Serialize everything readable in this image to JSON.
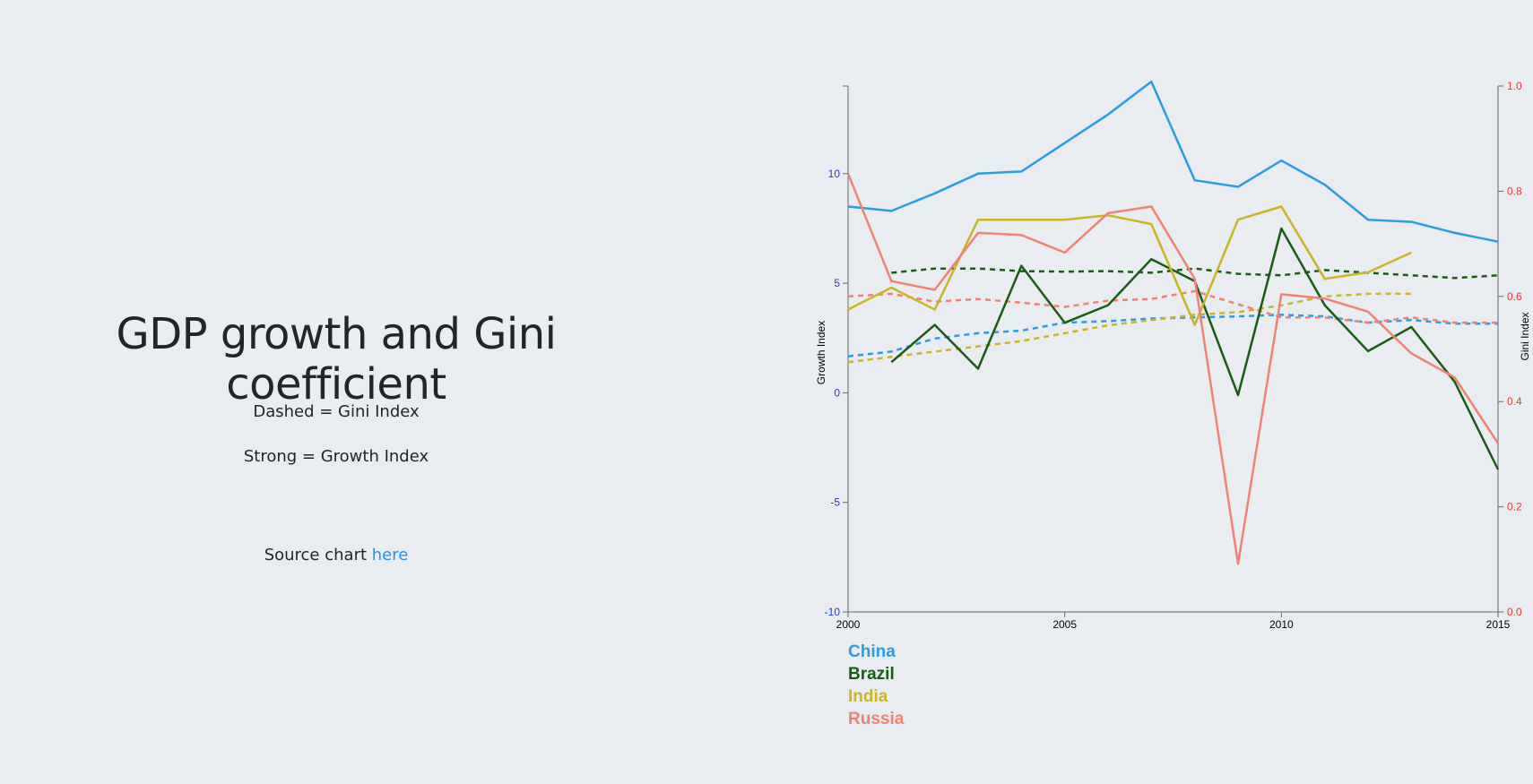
{
  "page": {
    "title": "GDP growth and Gini coefficient",
    "note_dashed": "Dashed = Gini Index",
    "note_strong": "Strong = Growth Index",
    "source_prefix": "Source chart ",
    "source_link": "here"
  },
  "chart_data": {
    "type": "line",
    "x_domain": [
      2000,
      2015
    ],
    "x_ticks": [
      2000,
      2005,
      2010,
      2015
    ],
    "y_left": {
      "label": "Growth Index",
      "domain": [
        -10,
        14
      ],
      "ticks": [
        -10,
        -5,
        0,
        5,
        10
      ],
      "color": "#1f3fcc"
    },
    "y_right": {
      "label": "Gini Index",
      "domain": [
        0,
        1
      ],
      "ticks": [
        0.0,
        0.2,
        0.4,
        0.6,
        0.8,
        1.0
      ],
      "color": "#e53935"
    },
    "legend_position": "bottom-left",
    "series": [
      {
        "name": "China",
        "color": "#2a9de1",
        "growth": [
          [
            2000,
            8.5
          ],
          [
            2001,
            8.3
          ],
          [
            2002,
            9.1
          ],
          [
            2003,
            10.0
          ],
          [
            2004,
            10.1
          ],
          [
            2005,
            11.4
          ],
          [
            2006,
            12.7
          ],
          [
            2007,
            14.2
          ],
          [
            2008,
            9.7
          ],
          [
            2009,
            9.4
          ],
          [
            2010,
            10.6
          ],
          [
            2011,
            9.5
          ],
          [
            2012,
            7.9
          ],
          [
            2013,
            7.8
          ],
          [
            2014,
            7.3
          ],
          [
            2015,
            6.9
          ]
        ],
        "gini": [
          [
            2000,
            0.486
          ],
          [
            2001,
            0.495
          ],
          [
            2002,
            0.52
          ],
          [
            2003,
            0.53
          ],
          [
            2004,
            0.535
          ],
          [
            2005,
            0.55
          ],
          [
            2006,
            0.553
          ],
          [
            2007,
            0.558
          ],
          [
            2008,
            0.56
          ],
          [
            2009,
            0.562
          ],
          [
            2010,
            0.565
          ],
          [
            2011,
            0.562
          ],
          [
            2012,
            0.55
          ],
          [
            2013,
            0.555
          ],
          [
            2014,
            0.548
          ],
          [
            2015,
            0.548
          ]
        ]
      },
      {
        "name": "Brazil",
        "color": "#1a5c16",
        "growth": [
          [
            2001,
            1.4
          ],
          [
            2002,
            3.1
          ],
          [
            2003,
            1.1
          ],
          [
            2004,
            5.8
          ],
          [
            2005,
            3.2
          ],
          [
            2006,
            4.0
          ],
          [
            2007,
            6.1
          ],
          [
            2008,
            5.1
          ],
          [
            2009,
            -0.1
          ],
          [
            2010,
            7.5
          ],
          [
            2011,
            4.0
          ],
          [
            2012,
            1.9
          ],
          [
            2013,
            3.0
          ],
          [
            2014,
            0.5
          ],
          [
            2015,
            -3.5
          ]
        ],
        "gini": [
          [
            2001,
            0.645
          ],
          [
            2002,
            0.653
          ],
          [
            2003,
            0.653
          ],
          [
            2004,
            0.648
          ],
          [
            2005,
            0.647
          ],
          [
            2006,
            0.648
          ],
          [
            2007,
            0.645
          ],
          [
            2008,
            0.653
          ],
          [
            2009,
            0.643
          ],
          [
            2010,
            0.64
          ],
          [
            2011,
            0.65
          ],
          [
            2012,
            0.645
          ],
          [
            2013,
            0.64
          ],
          [
            2014,
            0.635
          ],
          [
            2015,
            0.64
          ]
        ]
      },
      {
        "name": "India",
        "color": "#c9b622",
        "growth": [
          [
            2000,
            3.8
          ],
          [
            2001,
            4.8
          ],
          [
            2002,
            3.8
          ],
          [
            2003,
            7.9
          ],
          [
            2004,
            7.9
          ],
          [
            2005,
            7.9
          ],
          [
            2006,
            8.1
          ],
          [
            2007,
            7.7
          ],
          [
            2008,
            3.1
          ],
          [
            2009,
            7.9
          ],
          [
            2010,
            8.5
          ],
          [
            2011,
            5.2
          ],
          [
            2012,
            5.5
          ],
          [
            2013,
            6.4
          ]
        ],
        "gini": [
          [
            2000,
            0.475
          ],
          [
            2001,
            0.485
          ],
          [
            2002,
            0.495
          ],
          [
            2003,
            0.505
          ],
          [
            2004,
            0.515
          ],
          [
            2005,
            0.53
          ],
          [
            2006,
            0.545
          ],
          [
            2007,
            0.555
          ],
          [
            2008,
            0.565
          ],
          [
            2009,
            0.57
          ],
          [
            2010,
            0.583
          ],
          [
            2011,
            0.6
          ],
          [
            2012,
            0.605
          ],
          [
            2013,
            0.605
          ]
        ]
      },
      {
        "name": "Russia",
        "color": "#f08274",
        "growth": [
          [
            2000,
            10.0
          ],
          [
            2001,
            5.1
          ],
          [
            2002,
            4.7
          ],
          [
            2003,
            7.3
          ],
          [
            2004,
            7.2
          ],
          [
            2005,
            6.4
          ],
          [
            2006,
            8.2
          ],
          [
            2007,
            8.5
          ],
          [
            2008,
            5.2
          ],
          [
            2009,
            -7.8
          ],
          [
            2010,
            4.5
          ],
          [
            2011,
            4.3
          ],
          [
            2012,
            3.7
          ],
          [
            2013,
            1.8
          ],
          [
            2014,
            0.7
          ],
          [
            2015,
            -2.3
          ]
        ],
        "gini": [
          [
            2000,
            0.6
          ],
          [
            2001,
            0.605
          ],
          [
            2002,
            0.59
          ],
          [
            2003,
            0.595
          ],
          [
            2004,
            0.588
          ],
          [
            2005,
            0.58
          ],
          [
            2006,
            0.592
          ],
          [
            2007,
            0.595
          ],
          [
            2008,
            0.61
          ],
          [
            2009,
            0.585
          ],
          [
            2010,
            0.56
          ],
          [
            2011,
            0.56
          ],
          [
            2012,
            0.55
          ],
          [
            2013,
            0.56
          ],
          [
            2014,
            0.55
          ],
          [
            2015,
            0.55
          ]
        ]
      }
    ]
  }
}
